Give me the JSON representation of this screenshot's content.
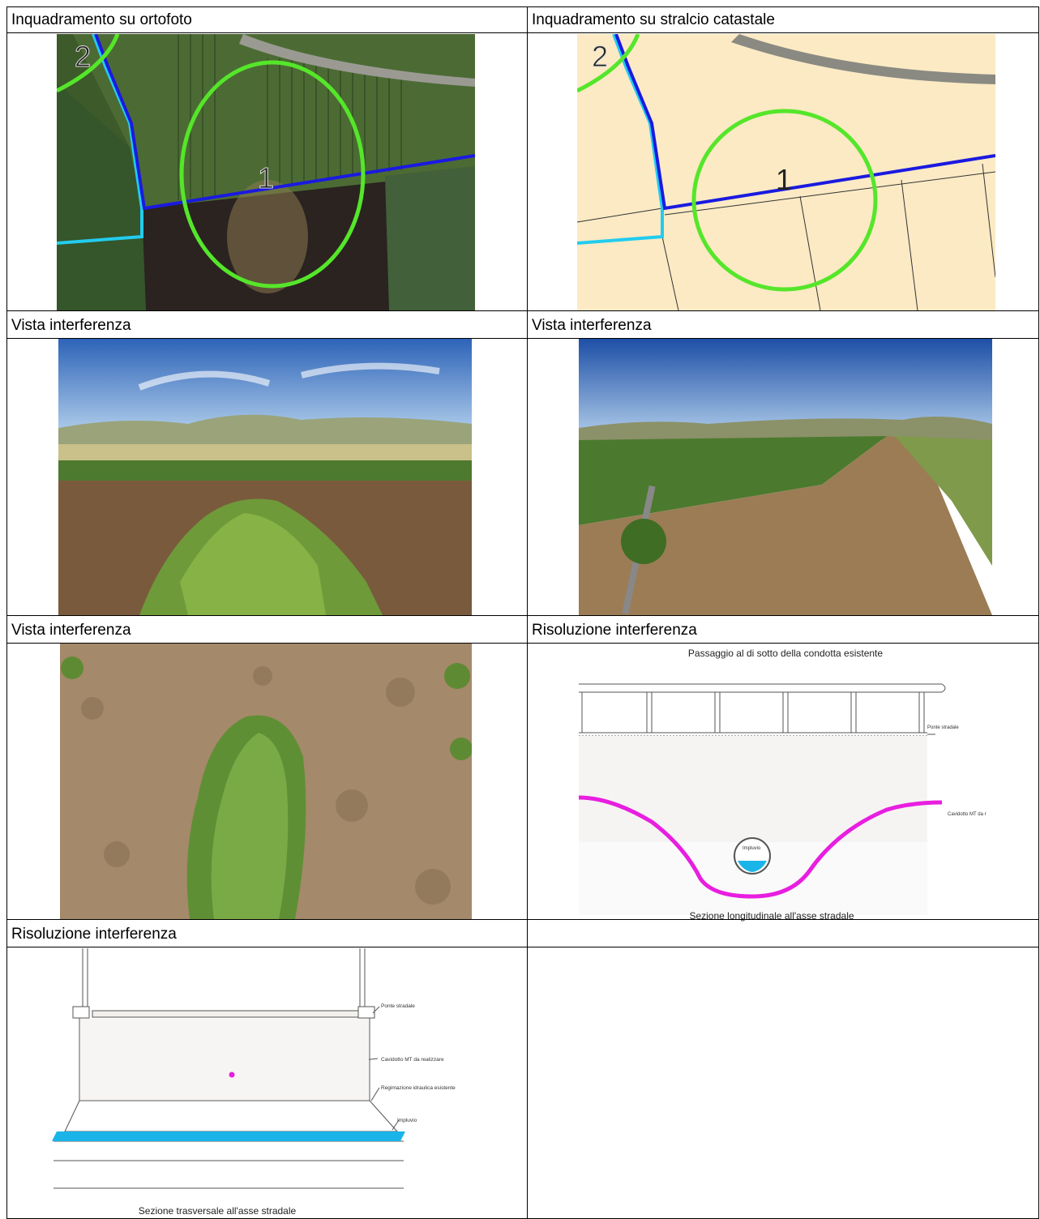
{
  "cells": [
    {
      "title": "Inquadramento su ortofoto"
    },
    {
      "title": "Inquadramento su stralcio catastale"
    },
    {
      "title": "Vista interferenza"
    },
    {
      "title": "Vista interferenza"
    },
    {
      "title": "Vista interferenza"
    },
    {
      "title": "Risoluzione interferenza"
    },
    {
      "title": "Risoluzione interferenza"
    }
  ],
  "map_labels": {
    "one": "1",
    "two": "2"
  },
  "longitudinal": {
    "heading": "Passaggio al di sotto della condotta esistente",
    "bridge_label": "Ponte stradale",
    "cable_label": "Cavidotto MT da r",
    "drain_label": "Impluvio",
    "caption": "Sezione longitudinale all'asse stradale"
  },
  "transversal": {
    "bridge_label": "Ponte stradale",
    "cable_label": "Cavidotto MT da realizzare",
    "regulation_label": "Regimazione idraulica esistente",
    "drain_label": "Impluvio",
    "caption": "Sezione trasversale all'asse stradale"
  },
  "colors": {
    "route_blue": "#1a1ae0",
    "route_cyan": "#22ccee",
    "circle_green": "#55e62a",
    "cable_magenta": "#e81ee0",
    "water_cyan": "#1ab4e8",
    "cadastral_bg": "#fbeac4"
  }
}
